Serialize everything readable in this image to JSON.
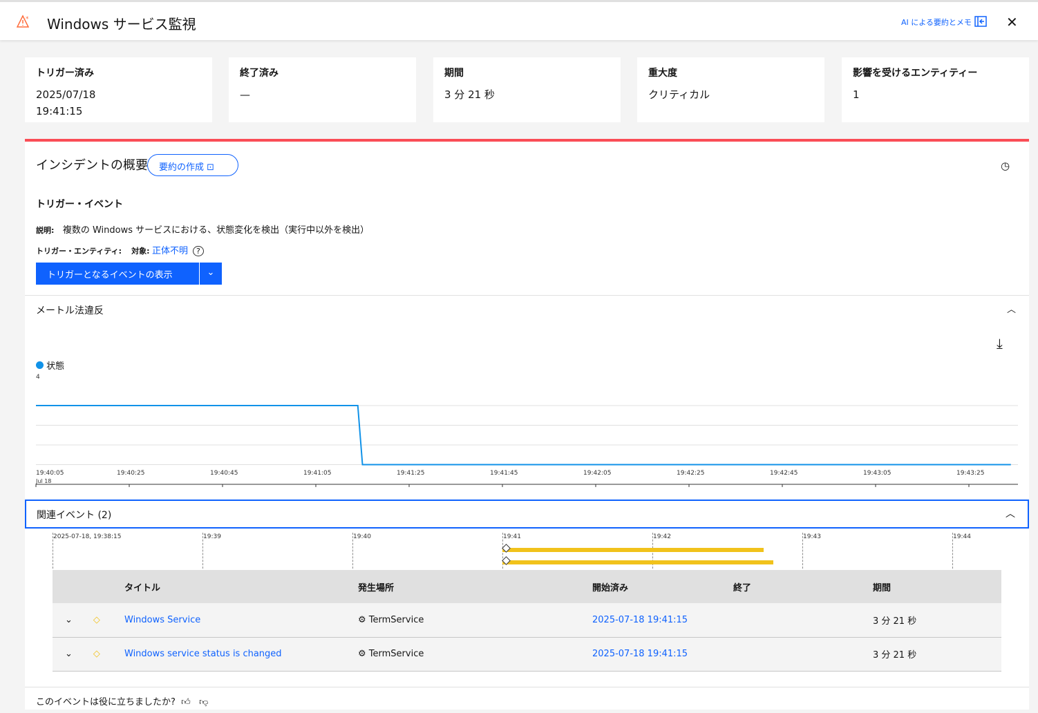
{
  "header": {
    "title": "Windows サービス監視",
    "ai_link": "AI による要約とメモ",
    "icon": "warning-icon"
  },
  "cards": [
    {
      "label": "トリガー済み",
      "value": "2025/07/18",
      "value2": "19:41:15"
    },
    {
      "label": "終了済み",
      "value": "—"
    },
    {
      "label": "期間",
      "value": "3 分 21 秒"
    },
    {
      "label": "重大度",
      "value": "クリティカル"
    },
    {
      "label": "影響を受けるエンティティー",
      "value": "1"
    }
  ],
  "overview": {
    "title": "インシデントの概要",
    "summary_button": "要約の作成",
    "trigger_title": "トリガー・イベント",
    "desc_label": "説明:",
    "desc": "複数の Windows サービスにおける、状態変化を検出（実行中以外を検出）",
    "entity_label": "トリガー・エンティティ:",
    "target_label": "対象:",
    "target_value": "正体不明",
    "show_button": "トリガーとなるイベントの表示",
    "accent": "#fa4d56"
  },
  "metric": {
    "title": "メートル法違反",
    "legend": "状態",
    "y_tick": "4"
  },
  "chart_data": {
    "type": "line",
    "series": [
      {
        "name": "状態",
        "x": [
          "19:40:05",
          "19:41:14",
          "19:41:15",
          "19:43:34"
        ],
        "values": [
          4,
          4,
          1,
          1
        ]
      }
    ],
    "x_ticks": [
      "19:40:05",
      "19:40:25",
      "19:40:45",
      "19:41:05",
      "19:41:25",
      "19:41:45",
      "19:42:05",
      "19:42:25",
      "19:42:45",
      "19:43:05",
      "19:43:25"
    ],
    "x_sub": "Jul 18",
    "ylim": [
      0,
      4
    ],
    "color": "#1192e8"
  },
  "related": {
    "title": "関連イベント (2)",
    "timeline": [
      "2025-07-18, 19:38:15",
      "19:39",
      "19:40",
      "19:41",
      "19:42",
      "19:43",
      "19:44"
    ],
    "columns": [
      "タイトル",
      "発生場所",
      "開始済み",
      "終了",
      "期間"
    ],
    "rows": [
      {
        "title": "Windows Service",
        "source": "TermService",
        "start": "2025-07-18 19:41:15",
        "end": "",
        "duration": "3 分 21 秒"
      },
      {
        "title": "Windows service status is changed",
        "source": "TermService",
        "start": "2025-07-18 19:41:15",
        "end": "",
        "duration": "3 分 21 秒"
      }
    ]
  },
  "feedback": {
    "question": "このイベントは役に立ちましたか?"
  }
}
